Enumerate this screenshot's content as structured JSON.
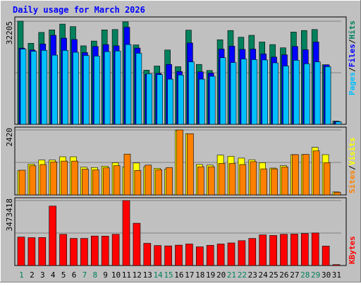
{
  "colors": {
    "background": "#c0c0c0",
    "border": "#000000",
    "title": "#0000ff",
    "hits": "#00805c",
    "files": "#0000ff",
    "pages": "#00c0ff",
    "visits": "#ffff00",
    "sites": "#ff8000",
    "kbytes": "#ff0000",
    "weekday_label": "#000000",
    "weekend_label": "#00805c",
    "separator": "#000000"
  },
  "chart_data": {
    "type": "bar",
    "title": "Daily usage for March 2026",
    "categories": [
      "1",
      "2",
      "3",
      "4",
      "5",
      "6",
      "7",
      "8",
      "9",
      "10",
      "11",
      "12",
      "13",
      "14",
      "15",
      "16",
      "17",
      "18",
      "19",
      "20",
      "21",
      "22",
      "23",
      "24",
      "25",
      "26",
      "27",
      "28",
      "29",
      "30",
      "31"
    ],
    "weekend_days": [
      "1",
      "7",
      "8",
      "14",
      "15",
      "21",
      "22",
      "28",
      "29"
    ],
    "panels": [
      {
        "name": "top",
        "ymax_label": "32205",
        "ylim": [
          0,
          32205
        ],
        "legend": [
          {
            "name": "Hits",
            "color_key": "hits"
          },
          {
            "name": "Files",
            "color_key": "files"
          },
          {
            "name": "Pages",
            "color_key": "pages"
          }
        ],
        "series": [
          {
            "name": "Hits",
            "values": [
              32205,
              25300,
              28700,
              29500,
              31300,
              30500,
              24500,
              26000,
              29500,
              29600,
              32000,
              24800,
              16900,
              18200,
              23200,
              18000,
              29400,
              18700,
              16800,
              26400,
              29300,
              27200,
              27800,
              25700,
              24900,
              23900,
              28800,
              29300,
              29600,
              18600,
              1000
            ]
          },
          {
            "name": "Files",
            "values": [
              23800,
              23200,
              25100,
              27800,
              26900,
              26500,
              22400,
              24300,
              24900,
              24500,
              30300,
              23800,
              15600,
              15900,
              18700,
              16500,
              25400,
              16400,
              16000,
              23500,
              24400,
              23400,
              23500,
              22000,
              21000,
              21700,
              24300,
              23300,
              25700,
              18600,
              900
            ]
          },
          {
            "name": "Pages",
            "values": [
              23500,
              22800,
              23100,
              21600,
              23100,
              22500,
              21500,
              21300,
              22700,
              22900,
              24900,
              22200,
              15800,
              15500,
              14100,
              15400,
              19500,
              14100,
              15000,
              20800,
              19300,
              20400,
              20200,
              20100,
              19200,
              18200,
              20000,
              18900,
              19500,
              18000,
              800
            ]
          }
        ]
      },
      {
        "name": "middle",
        "ymax_label": "2420",
        "ylim": [
          0,
          2420
        ],
        "legend": [
          {
            "name": "Visits",
            "color_key": "visits"
          },
          {
            "name": "Sites",
            "color_key": "sites"
          }
        ],
        "series": [
          {
            "name": "Visits",
            "values": [
              900,
              1150,
              1300,
              1300,
              1420,
              1420,
              1030,
              1020,
              1070,
              1200,
              1040,
              1190,
              1050,
              990,
              960,
              2400,
              2280,
              1130,
              1110,
              1480,
              1440,
              1370,
              1310,
              1200,
              1000,
              1090,
              1500,
              1500,
              1770,
              1500,
              110
            ]
          },
          {
            "name": "Sites",
            "values": [
              920,
              1090,
              1130,
              1230,
              1260,
              1260,
              960,
              930,
              1010,
              1090,
              1520,
              910,
              1110,
              940,
              1020,
              2420,
              2280,
              1050,
              1050,
              1170,
              1170,
              1130,
              1240,
              970,
              970,
              1040,
              1500,
              1510,
              1640,
              1200,
              100
            ]
          }
        ]
      },
      {
        "name": "bottom",
        "ymax_label": "3473418",
        "ylim": [
          0,
          3473418
        ],
        "legend": [
          {
            "name": "KBytes",
            "color_key": "kbytes"
          }
        ],
        "series": [
          {
            "name": "KBytes",
            "values": [
              1520000,
              1490000,
              1500000,
              3180000,
              1670000,
              1450000,
              1450000,
              1580000,
              1570000,
              1670000,
              3473418,
              2260000,
              1190000,
              1070000,
              1050000,
              1090000,
              1150000,
              1000000,
              1080000,
              1150000,
              1210000,
              1330000,
              1450000,
              1640000,
              1610000,
              1670000,
              1680000,
              1710000,
              1740000,
              1040000,
              50000
            ]
          }
        ]
      }
    ]
  }
}
